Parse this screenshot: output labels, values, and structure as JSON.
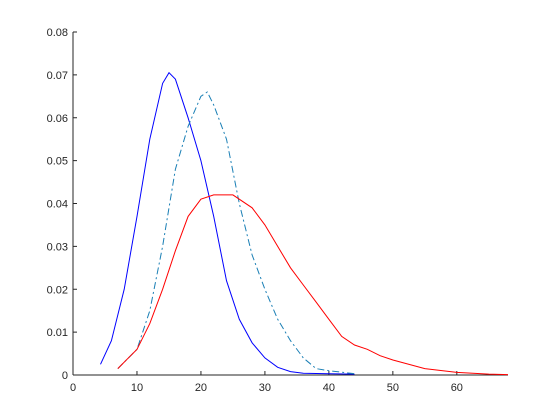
{
  "chart_data": {
    "type": "line",
    "xlim": [
      0,
      68
    ],
    "xticks": [
      0,
      10,
      20,
      30,
      40,
      50,
      60
    ],
    "ylim": [
      0,
      0.08
    ],
    "yticks": [
      0,
      0.01,
      0.02,
      0.03,
      0.04,
      0.05,
      0.06,
      0.07,
      0.08
    ],
    "series": [
      {
        "color": "#0000ff",
        "dash": "solid",
        "x": [
          4.3,
          6,
          8,
          10,
          12,
          14,
          15,
          16,
          18,
          20,
          22,
          24,
          26,
          28,
          30,
          32,
          34,
          36,
          40,
          44
        ],
        "values": [
          0.0025,
          0.008,
          0.02,
          0.037,
          0.055,
          0.068,
          0.0705,
          0.069,
          0.06,
          0.05,
          0.037,
          0.022,
          0.013,
          0.0075,
          0.004,
          0.0018,
          0.0008,
          0.0004,
          0.0003,
          0.0002
        ]
      },
      {
        "color": "#1a7fb5",
        "dash": "dashdot",
        "x": [
          7,
          10,
          12,
          14,
          16,
          18,
          20,
          21,
          22,
          24,
          26,
          28,
          30,
          32,
          34,
          36,
          38,
          40,
          44
        ],
        "values": [
          0.0015,
          0.006,
          0.015,
          0.03,
          0.048,
          0.058,
          0.065,
          0.066,
          0.063,
          0.055,
          0.04,
          0.028,
          0.02,
          0.013,
          0.008,
          0.004,
          0.0015,
          0.001,
          0.0003
        ]
      },
      {
        "color": "#ff0000",
        "dash": "solid",
        "x": [
          7,
          10,
          12,
          14,
          16,
          18,
          20,
          22,
          25,
          28,
          30,
          32,
          34,
          36,
          38,
          40,
          42,
          44,
          46,
          48,
          50,
          55,
          60,
          65,
          68
        ],
        "values": [
          0.0015,
          0.006,
          0.012,
          0.02,
          0.029,
          0.037,
          0.041,
          0.042,
          0.042,
          0.039,
          0.035,
          0.03,
          0.025,
          0.021,
          0.017,
          0.013,
          0.009,
          0.007,
          0.006,
          0.0045,
          0.0035,
          0.0015,
          0.0006,
          0.0002,
          0.0001
        ]
      }
    ]
  }
}
